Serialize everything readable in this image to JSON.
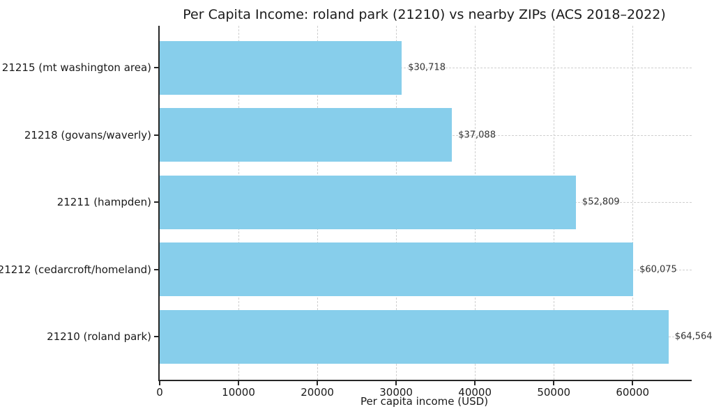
{
  "chart_data": {
    "type": "bar",
    "orientation": "horizontal",
    "title": "Per Capita Income: roland park (21210) vs nearby ZIPs (ACS 2018–2022)",
    "xlabel": "Per capita income (USD)",
    "categories": [
      "21215 (mt washington area)",
      "21218 (govans/waverly)",
      "21211 (hampden)",
      "21212 (cedarcroft/homeland)",
      "21210 (roland park)"
    ],
    "values": [
      30718,
      37088,
      52809,
      60075,
      64564
    ],
    "value_labels": [
      "$30,718",
      "$37,088",
      "$52,809",
      "$60,075",
      "$64,564"
    ],
    "xticks": [
      0,
      10000,
      20000,
      30000,
      40000,
      50000,
      60000
    ],
    "xtick_labels": [
      "0",
      "10000",
      "20000",
      "30000",
      "40000",
      "50000",
      "60000"
    ],
    "xlim": [
      0,
      67500
    ],
    "bar_color": "#87ceeb",
    "grid": "dashed both axes, light gray, behind bars",
    "legend": "none"
  }
}
